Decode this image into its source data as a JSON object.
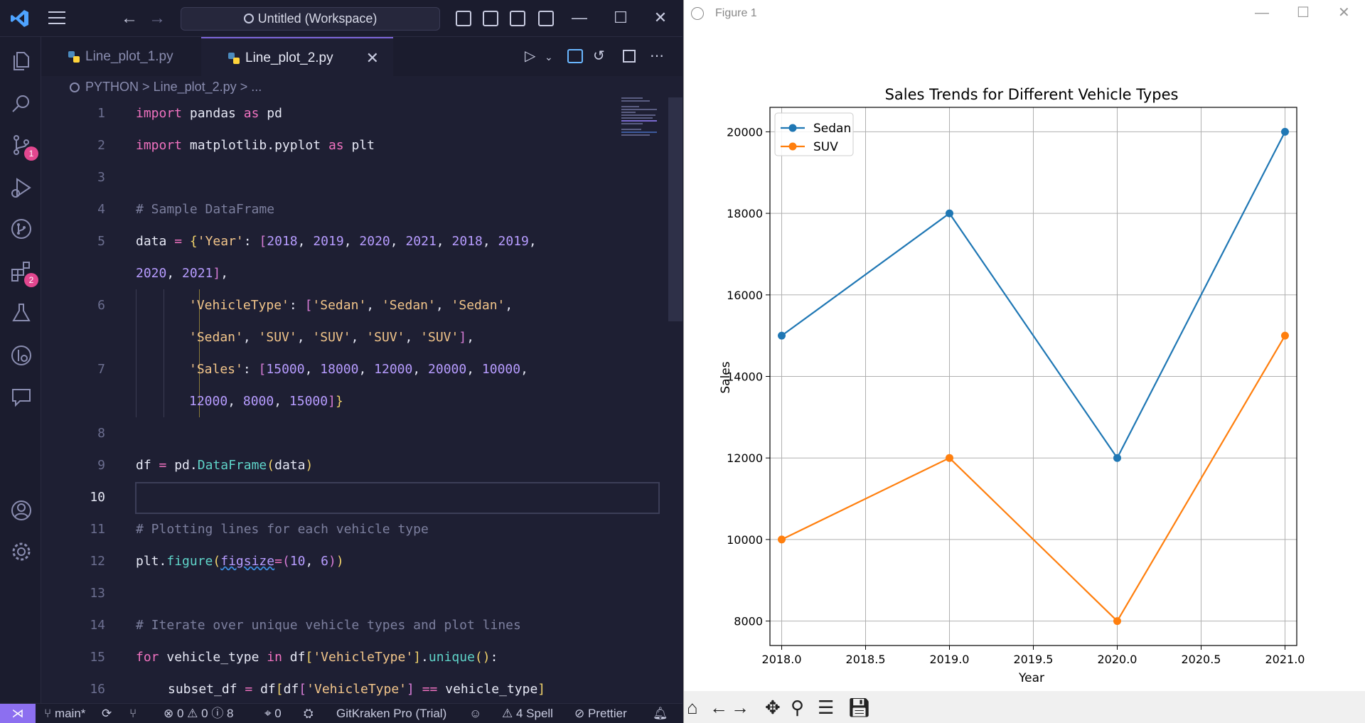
{
  "titlebar": {
    "search_text": "Untitled (Workspace)"
  },
  "activity": {
    "source_control_badge": "1",
    "extensions_badge": "2"
  },
  "tabs": [
    {
      "label": "Line_plot_1.py"
    },
    {
      "label": "Line_plot_2.py"
    }
  ],
  "breadcrumb": {
    "folder": "PYTHON",
    "sep": ">",
    "file": "Line_plot_2.py",
    "more": "..."
  },
  "line_numbers": [
    "1",
    "2",
    "3",
    "4",
    "5",
    "",
    "6",
    "",
    "7",
    "",
    "8",
    "9",
    "10",
    "11",
    "12",
    "13",
    "14",
    "15",
    "16"
  ],
  "statusbar": {
    "branch": "main*",
    "errors": "0",
    "warnings": "0",
    "infos": "8",
    "ports": "0",
    "gitkraken": "GitKraken Pro (Trial)",
    "spell": "4 Spell",
    "prettier": "Prettier"
  },
  "figure": {
    "window_title": "Figure 1"
  },
  "chart_data": {
    "type": "line",
    "title": "Sales Trends for Different Vehicle Types",
    "xlabel": "Year",
    "ylabel": "Sales",
    "x_ticks": [
      "2018.0",
      "2018.5",
      "2019.0",
      "2019.5",
      "2020.0",
      "2020.5",
      "2021.0"
    ],
    "y_ticks": [
      "8000",
      "10000",
      "12000",
      "14000",
      "16000",
      "18000",
      "20000"
    ],
    "xlim": [
      2017.93,
      2021.07
    ],
    "ylim": [
      7400,
      20600
    ],
    "grid": true,
    "legend_position": "upper-left",
    "series": [
      {
        "name": "Sedan",
        "color": "#1f77b4",
        "x": [
          2018,
          2019,
          2020,
          2021
        ],
        "y": [
          15000,
          18000,
          12000,
          20000
        ]
      },
      {
        "name": "SUV",
        "color": "#ff7f0e",
        "x": [
          2018,
          2019,
          2020,
          2021
        ],
        "y": [
          10000,
          12000,
          8000,
          15000
        ]
      }
    ]
  }
}
